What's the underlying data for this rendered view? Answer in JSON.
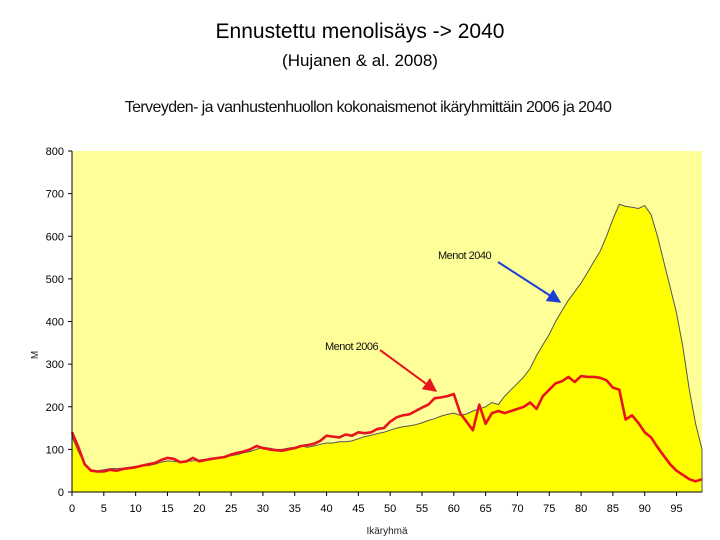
{
  "slide": {
    "title": "Ennustettu menolisäys -> 2040",
    "subtitle": "(Hujanen & al. 2008)"
  },
  "chart_data": {
    "type": "area",
    "title": "Terveyden- ja vanhustenhuollon kokonaismenot ikäryhmittäin 2006 ja 2040",
    "xlabel": "Ikäryhmä",
    "ylabel": "M",
    "xlim": [
      0,
      99
    ],
    "ylim": [
      0,
      800
    ],
    "xticks": [
      0,
      5,
      10,
      15,
      20,
      25,
      30,
      35,
      40,
      45,
      50,
      55,
      60,
      65,
      70,
      75,
      80,
      85,
      90,
      95
    ],
    "yticks": [
      0,
      100,
      200,
      300,
      400,
      500,
      600,
      700,
      800
    ],
    "grid": false,
    "background": "#FFFF99",
    "colors": {
      "area_fill": "#FFFF00",
      "area_edge": "#555555",
      "line_2006": "#E8141B",
      "arrow_2040": "#1F3FD4"
    },
    "series": [
      {
        "name": "Menot 2040",
        "style": "area",
        "x": [
          0,
          1,
          2,
          3,
          4,
          5,
          6,
          7,
          8,
          9,
          10,
          11,
          12,
          13,
          14,
          15,
          16,
          17,
          18,
          19,
          20,
          21,
          22,
          23,
          24,
          25,
          26,
          27,
          28,
          29,
          30,
          31,
          32,
          33,
          34,
          35,
          36,
          37,
          38,
          39,
          40,
          41,
          42,
          43,
          44,
          45,
          46,
          47,
          48,
          49,
          50,
          51,
          52,
          53,
          54,
          55,
          56,
          57,
          58,
          59,
          60,
          61,
          62,
          63,
          64,
          65,
          66,
          67,
          68,
          69,
          70,
          71,
          72,
          73,
          74,
          75,
          76,
          77,
          78,
          79,
          80,
          81,
          82,
          83,
          84,
          85,
          86,
          87,
          88,
          89,
          90,
          91,
          92,
          93,
          94,
          95,
          96,
          97,
          98,
          99
        ],
        "values": [
          130,
          95,
          65,
          52,
          50,
          52,
          55,
          55,
          56,
          58,
          60,
          62,
          62,
          65,
          70,
          73,
          72,
          70,
          72,
          73,
          75,
          77,
          77,
          80,
          82,
          85,
          88,
          92,
          95,
          100,
          105,
          103,
          100,
          100,
          103,
          105,
          108,
          105,
          108,
          112,
          115,
          115,
          118,
          118,
          120,
          125,
          130,
          133,
          137,
          140,
          145,
          150,
          153,
          155,
          158,
          162,
          168,
          172,
          178,
          182,
          185,
          180,
          183,
          190,
          195,
          200,
          210,
          205,
          225,
          240,
          255,
          270,
          290,
          320,
          345,
          370,
          400,
          425,
          450,
          470,
          490,
          515,
          540,
          565,
          600,
          640,
          675,
          670,
          668,
          665,
          672,
          650,
          600,
          540,
          480,
          420,
          340,
          240,
          160,
          100
        ]
      },
      {
        "name": "Menot 2006",
        "style": "line",
        "x": [
          0,
          1,
          2,
          3,
          4,
          5,
          6,
          7,
          8,
          9,
          10,
          11,
          12,
          13,
          14,
          15,
          16,
          17,
          18,
          19,
          20,
          21,
          22,
          23,
          24,
          25,
          26,
          27,
          28,
          29,
          30,
          31,
          32,
          33,
          34,
          35,
          36,
          37,
          38,
          39,
          40,
          41,
          42,
          43,
          44,
          45,
          46,
          47,
          48,
          49,
          50,
          51,
          52,
          53,
          54,
          55,
          56,
          57,
          58,
          59,
          60,
          61,
          62,
          63,
          64,
          65,
          66,
          67,
          68,
          69,
          70,
          71,
          72,
          73,
          74,
          75,
          76,
          77,
          78,
          79,
          80,
          81,
          82,
          83,
          84,
          85,
          86,
          87,
          88,
          89,
          90,
          91,
          92,
          93,
          94,
          95,
          96,
          97,
          98,
          99
        ],
        "values": [
          140,
          105,
          65,
          50,
          48,
          48,
          52,
          50,
          54,
          56,
          58,
          62,
          65,
          68,
          75,
          80,
          78,
          70,
          72,
          80,
          72,
          75,
          78,
          80,
          82,
          88,
          92,
          95,
          100,
          108,
          103,
          100,
          98,
          97,
          100,
          103,
          108,
          110,
          113,
          120,
          132,
          130,
          128,
          135,
          132,
          140,
          138,
          140,
          148,
          150,
          165,
          175,
          180,
          182,
          190,
          198,
          205,
          220,
          222,
          225,
          230,
          185,
          165,
          145,
          205,
          160,
          185,
          190,
          185,
          190,
          195,
          200,
          210,
          195,
          225,
          240,
          255,
          260,
          270,
          258,
          272,
          270,
          270,
          268,
          262,
          245,
          240,
          170,
          180,
          162,
          140,
          128,
          105,
          85,
          65,
          50,
          40,
          30,
          25,
          30
        ]
      }
    ],
    "annotations": [
      {
        "text": "Menot 2040",
        "points_to_series": "Menot 2040"
      },
      {
        "text": "Menot 2006",
        "points_to_series": "Menot 2006"
      }
    ]
  }
}
